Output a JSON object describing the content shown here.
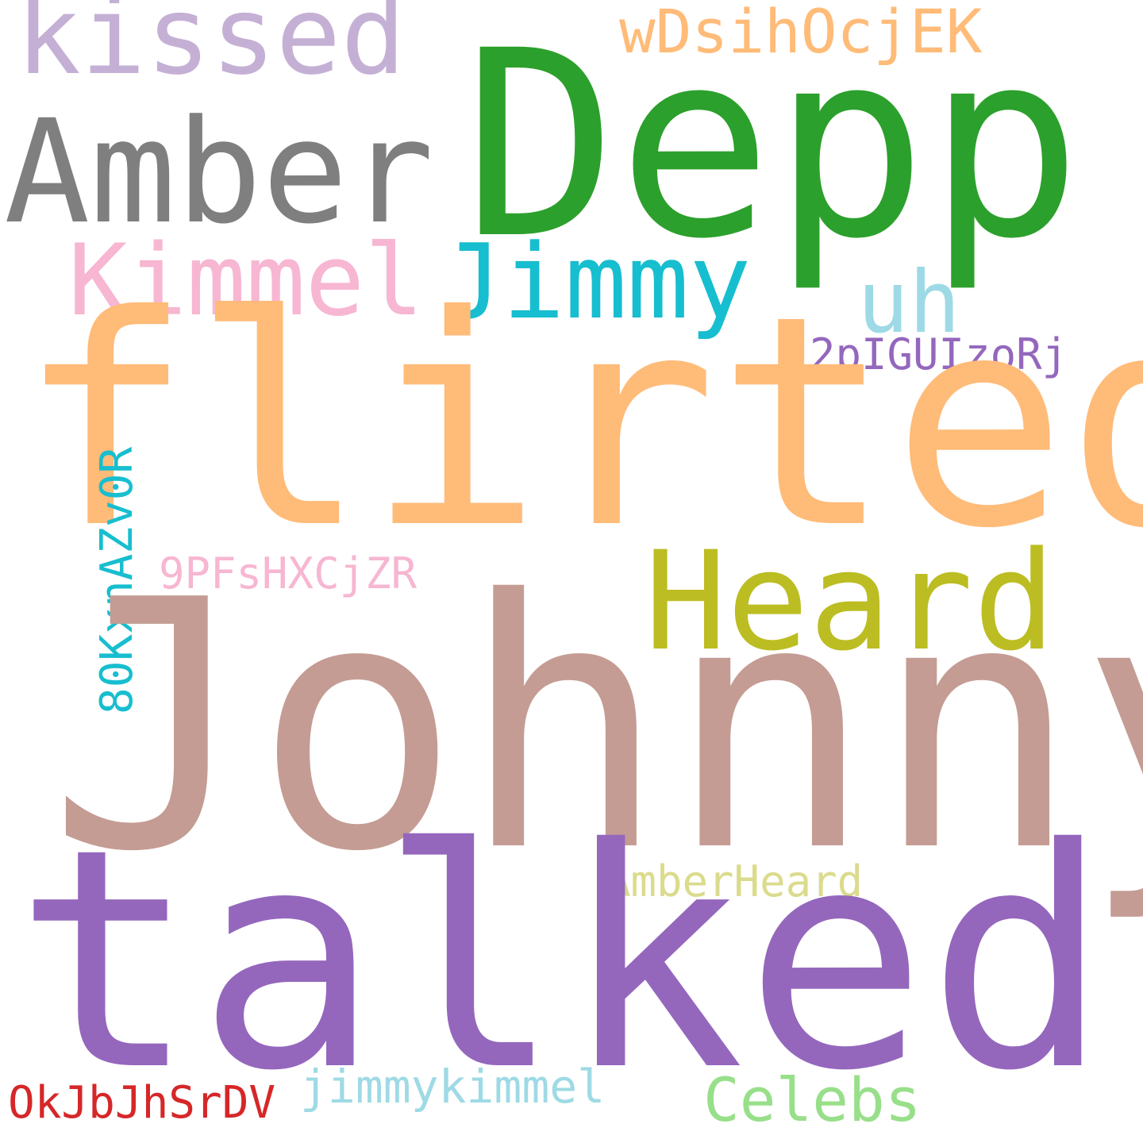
{
  "words": [
    {
      "id": "kissed",
      "text": "kissed",
      "color": "#c5b0d5"
    },
    {
      "id": "depp",
      "text": "Depp",
      "color": "#2ca02c"
    },
    {
      "id": "wdsih",
      "text": "wDsihOcjEK",
      "color": "#ffbb78"
    },
    {
      "id": "amber",
      "text": "Amber",
      "color": "#7f7f7f"
    },
    {
      "id": "kimmel",
      "text": "Kimmel",
      "color": "#f7b6d2"
    },
    {
      "id": "jimmy",
      "text": "Jimmy",
      "color": "#17becf"
    },
    {
      "id": "uh",
      "text": "uh",
      "color": "#9edae5"
    },
    {
      "id": "2pig",
      "text": "2pIGUIzoRj",
      "color": "#9467bd"
    },
    {
      "id": "flirted",
      "text": "flirted",
      "color": "#ffbb78"
    },
    {
      "id": "9pfs",
      "text": "9PFsHXCjZR",
      "color": "#f7b6d2"
    },
    {
      "id": "heard",
      "text": "Heard",
      "color": "#bcbd22"
    },
    {
      "id": "80kx",
      "text": "80KxnAZv0R",
      "color": "#17becf"
    },
    {
      "id": "johnny",
      "text": "Johnny",
      "color": "#c49c94"
    },
    {
      "id": "amberheard",
      "text": "AmberHeard",
      "color": "#dbdb8d"
    },
    {
      "id": "talked",
      "text": "talked",
      "color": "#9467bd"
    },
    {
      "id": "okjb",
      "text": "OkJbJhSrDV",
      "color": "#d62728"
    },
    {
      "id": "jimmykimmel",
      "text": "jimmykimmel",
      "color": "#9edae5"
    },
    {
      "id": "celebs",
      "text": "Celebs",
      "color": "#98df8a"
    }
  ]
}
